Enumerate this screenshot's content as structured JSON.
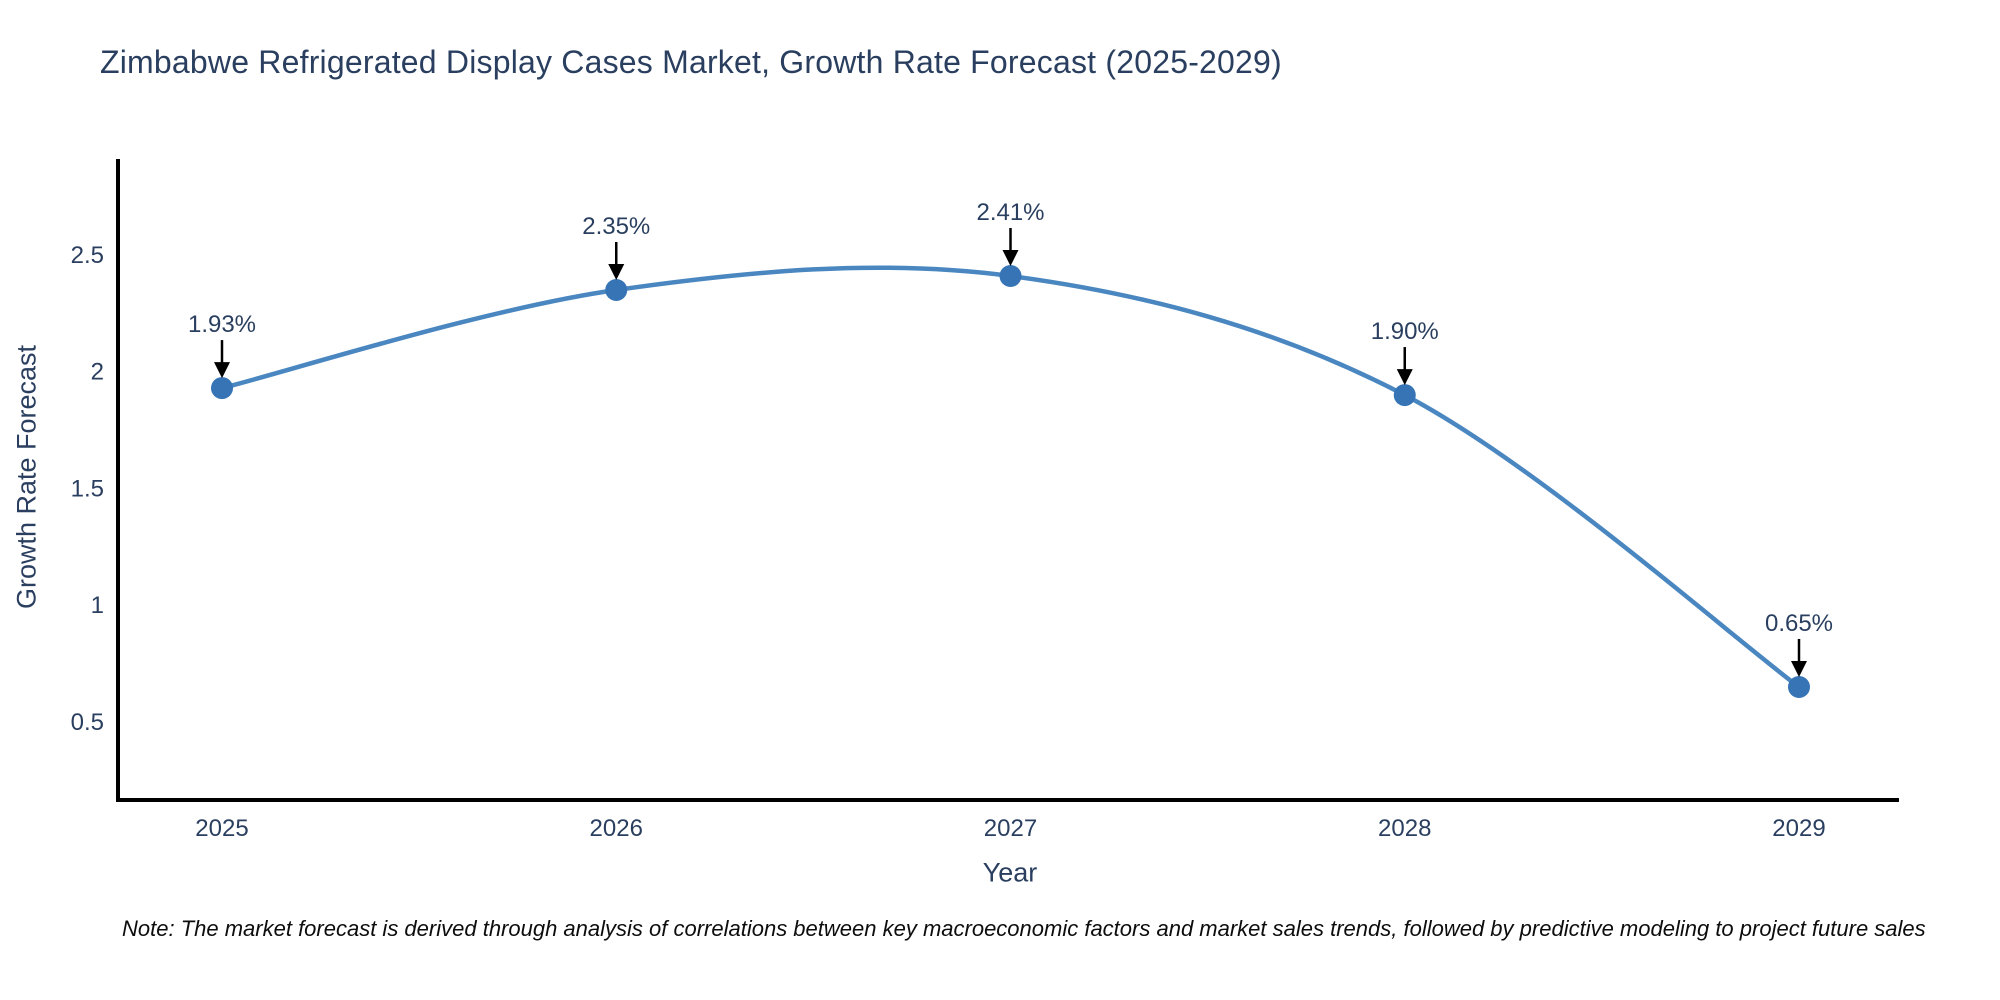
{
  "title": "Zimbabwe Refrigerated Display Cases Market, Growth Rate Forecast (2025-2029)",
  "note": "Note: The market forecast is derived through analysis of correlations between key macroeconomic factors and market sales trends, followed by predictive modeling to project future sales",
  "chart_data": {
    "type": "line",
    "title": "Zimbabwe Refrigerated Display Cases Market, Growth Rate Forecast (2025-2029)",
    "xlabel": "Year",
    "ylabel": "Growth Rate Forecast",
    "categories": [
      "2025",
      "2026",
      "2027",
      "2028",
      "2029"
    ],
    "values": [
      1.93,
      2.35,
      2.41,
      1.9,
      0.65
    ],
    "point_labels": [
      "1.93%",
      "2.35%",
      "2.41%",
      "1.90%",
      "0.65%"
    ],
    "yticks": [
      0.5,
      1,
      1.5,
      2,
      2.5
    ],
    "ylim": [
      0.166,
      2.911
    ],
    "line_shape": "spline",
    "grid": false,
    "legend": "none",
    "colors": {
      "line": "#4a87c1",
      "marker": "#3674b5",
      "axis": "#000000",
      "text": "#2a3f5f",
      "annotation": "#2a3f5f",
      "arrow": "#000000"
    }
  }
}
